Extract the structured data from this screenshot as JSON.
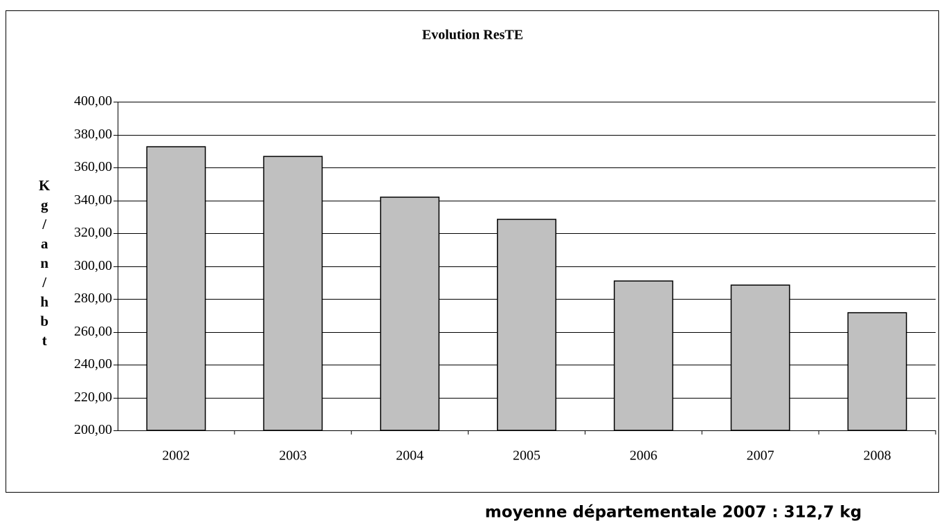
{
  "chart_data": {
    "type": "bar",
    "title": "Evolution ResTE",
    "y_label": "Kg/an/hbt",
    "categories": [
      "2002",
      "2003",
      "2004",
      "2005",
      "2006",
      "2007",
      "2008"
    ],
    "values": [
      372.6,
      366.7,
      341.9,
      328.4,
      290.9,
      288.4,
      271.6
    ],
    "color": "#c0c0c0",
    "ylim": [
      200,
      400
    ],
    "yticks": [
      {
        "value": 200,
        "label": "200,00"
      },
      {
        "value": 220,
        "label": "220,00"
      },
      {
        "value": 240,
        "label": "240,00"
      },
      {
        "value": 260,
        "label": "260,00"
      },
      {
        "value": 280,
        "label": "280,00"
      },
      {
        "value": 300,
        "label": "300,00"
      },
      {
        "value": 320,
        "label": "320,00"
      },
      {
        "value": 340,
        "label": "340,00"
      },
      {
        "value": 360,
        "label": "360,00"
      },
      {
        "value": 380,
        "label": "380,00"
      },
      {
        "value": 400,
        "label": "400,00"
      }
    ],
    "grid": true,
    "note": "moyenne départementale 2007 : 312,7 kg"
  }
}
